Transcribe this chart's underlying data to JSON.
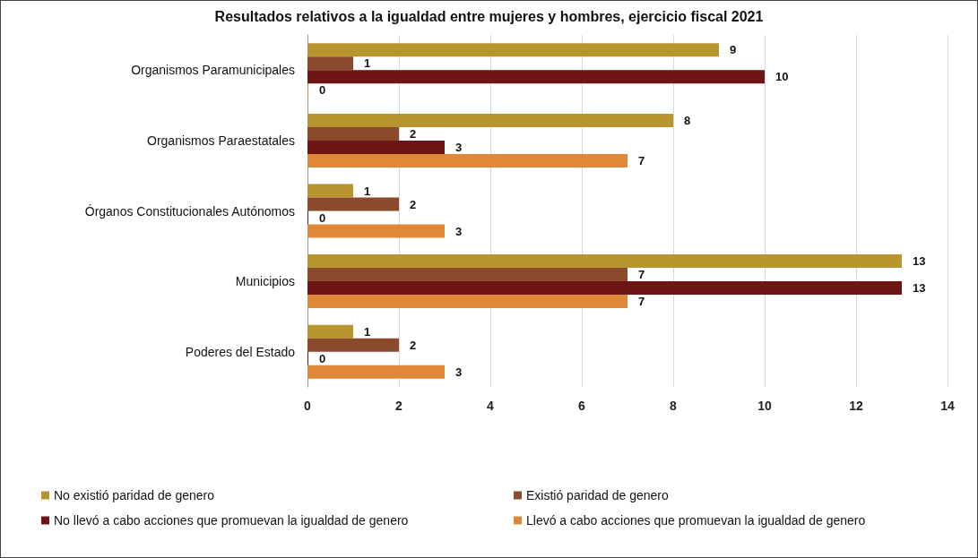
{
  "chart_data": {
    "type": "bar",
    "orientation": "horizontal",
    "title": "Resultados relativos a la igualdad entre mujeres y hombres, ejercicio fiscal 2021",
    "categories": [
      "Organismos Paramunicipales",
      "Organismos Paraestatales",
      "Órganos Constitucionales Autónomos",
      "Municipios",
      "Poderes del Estado"
    ],
    "series": [
      {
        "name": "No existió paridad de genero",
        "color": "#b8952e",
        "values": [
          9,
          8,
          1,
          13,
          1
        ]
      },
      {
        "name": "Existió paridad de genero",
        "color": "#8b4a2b",
        "values": [
          1,
          2,
          2,
          7,
          2
        ]
      },
      {
        "name": "No llevó a cabo acciones que promuevan la igualdad de genero",
        "color": "#6e1616",
        "values": [
          10,
          3,
          0,
          13,
          0
        ]
      },
      {
        "name": "Llevó a cabo acciones que promuevan la igualdad de genero",
        "color": "#e0883a",
        "values": [
          0,
          7,
          3,
          7,
          3
        ]
      }
    ],
    "xlim": [
      0,
      14
    ],
    "xticks": [
      0,
      2,
      4,
      6,
      8,
      10,
      12,
      14
    ],
    "grid": "x",
    "legend": "bottom",
    "data_labels": true
  }
}
